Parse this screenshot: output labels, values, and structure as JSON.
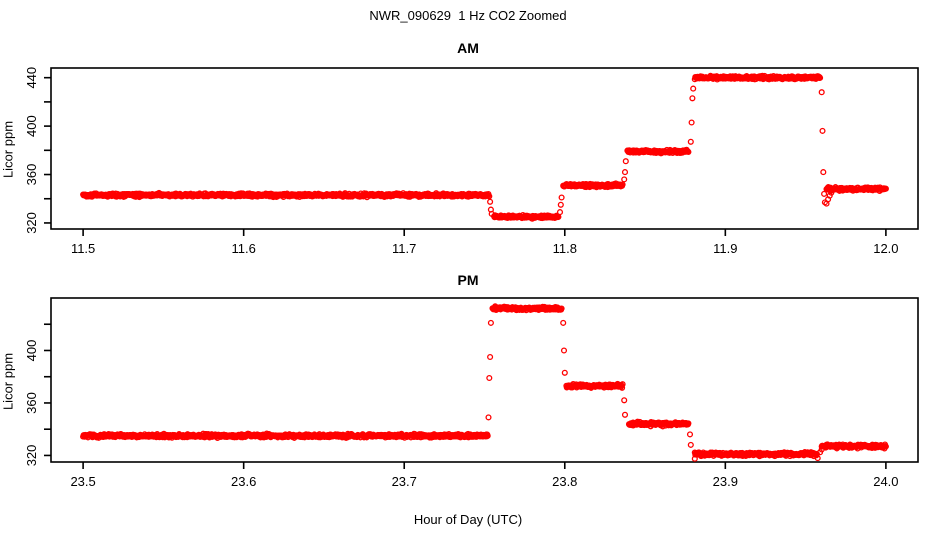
{
  "figure": {
    "title": "NWR_090629  1 Hz CO2 Zoomed",
    "xlabel": "Hour of Day (UTC)",
    "background_color": "#ffffff",
    "axis_color": "#000000",
    "point_color": "#ff0000"
  },
  "chart_data": [
    {
      "type": "scatter",
      "panel": "AM",
      "title": "AM",
      "ylabel": "Licor ppm",
      "marker": "open-circle",
      "series_color": "#ff0000",
      "grid": false,
      "xlim": [
        11.48,
        12.02
      ],
      "ylim": [
        315,
        448
      ],
      "xticks": [
        11.5,
        11.6,
        11.7,
        11.8,
        11.9,
        12.0
      ],
      "xtick_labels": [
        "11.5",
        "11.6",
        "11.7",
        "11.8",
        "11.9",
        "12.0"
      ],
      "yticks": [
        320,
        340,
        360,
        380,
        400,
        420,
        440
      ],
      "ytick_labels": [
        "320",
        "",
        "360",
        "",
        "400",
        "",
        "440"
      ],
      "segments": [
        {
          "x0": 11.5,
          "x1": 11.753,
          "y": 343,
          "noise": 0.8
        },
        {
          "x0": 11.756,
          "x1": 11.796,
          "y": 325,
          "noise": 0.8
        },
        {
          "x0": 11.799,
          "x1": 11.836,
          "y": 351,
          "noise": 0.8
        },
        {
          "x0": 11.839,
          "x1": 11.877,
          "y": 379,
          "noise": 0.8
        },
        {
          "x0": 11.881,
          "x1": 11.959,
          "y": 440,
          "noise": 0.8
        },
        {
          "x0": 11.963,
          "x1": 12.0,
          "y": 348,
          "noise": 0.8
        }
      ],
      "transition_points": [
        {
          "x": 11.7535,
          "y": 337.5
        },
        {
          "x": 11.754,
          "y": 331.0
        },
        {
          "x": 11.7545,
          "y": 327.5
        },
        {
          "x": 11.797,
          "y": 329.0
        },
        {
          "x": 11.7975,
          "y": 335.0
        },
        {
          "x": 11.798,
          "y": 341.0
        },
        {
          "x": 11.837,
          "y": 356.0
        },
        {
          "x": 11.8375,
          "y": 362.0
        },
        {
          "x": 11.838,
          "y": 371.0
        },
        {
          "x": 11.8785,
          "y": 387.0
        },
        {
          "x": 11.879,
          "y": 403.0
        },
        {
          "x": 11.8795,
          "y": 423.0
        },
        {
          "x": 11.88,
          "y": 431.0
        },
        {
          "x": 11.96,
          "y": 428.0
        },
        {
          "x": 11.9605,
          "y": 396.0
        },
        {
          "x": 11.961,
          "y": 362.0
        },
        {
          "x": 11.9615,
          "y": 344.0
        },
        {
          "x": 11.962,
          "y": 337.0
        },
        {
          "x": 11.963,
          "y": 336.0
        },
        {
          "x": 11.964,
          "y": 339.5
        },
        {
          "x": 11.965,
          "y": 342.5
        },
        {
          "x": 11.966,
          "y": 345.0
        }
      ]
    },
    {
      "type": "scatter",
      "panel": "PM",
      "title": "PM",
      "ylabel": "Licor ppm",
      "marker": "open-circle",
      "series_color": "#ff0000",
      "grid": false,
      "xlim": [
        23.48,
        24.02
      ],
      "ylim": [
        315,
        440
      ],
      "xticks": [
        23.5,
        23.6,
        23.7,
        23.8,
        23.9,
        24.0
      ],
      "xtick_labels": [
        "23.5",
        "23.6",
        "23.7",
        "23.8",
        "23.9",
        "24.0"
      ],
      "yticks": [
        320,
        340,
        360,
        380,
        400,
        420
      ],
      "ytick_labels": [
        "320",
        "",
        "360",
        "",
        "400",
        ""
      ],
      "segments": [
        {
          "x0": 23.5,
          "x1": 23.752,
          "y": 335,
          "noise": 0.8
        },
        {
          "x0": 23.755,
          "x1": 23.798,
          "y": 432,
          "noise": 0.8
        },
        {
          "x0": 23.801,
          "x1": 23.836,
          "y": 373,
          "noise": 0.8
        },
        {
          "x0": 23.84,
          "x1": 23.877,
          "y": 344,
          "noise": 0.8
        },
        {
          "x0": 23.881,
          "x1": 23.957,
          "y": 321,
          "noise": 0.8
        },
        {
          "x0": 23.96,
          "x1": 24.0,
          "y": 327,
          "noise": 0.8
        }
      ],
      "transition_points": [
        {
          "x": 23.7525,
          "y": 349.0
        },
        {
          "x": 23.753,
          "y": 379.0
        },
        {
          "x": 23.7535,
          "y": 395.0
        },
        {
          "x": 23.754,
          "y": 421.0
        },
        {
          "x": 23.799,
          "y": 421.0
        },
        {
          "x": 23.7995,
          "y": 400.0
        },
        {
          "x": 23.8,
          "y": 383.0
        },
        {
          "x": 23.837,
          "y": 362.0
        },
        {
          "x": 23.8375,
          "y": 351.0
        },
        {
          "x": 23.878,
          "y": 336.0
        },
        {
          "x": 23.8785,
          "y": 328.0
        },
        {
          "x": 23.881,
          "y": 317.5
        },
        {
          "x": 23.9575,
          "y": 318.0
        },
        {
          "x": 23.959,
          "y": 322.5
        },
        {
          "x": 23.96,
          "y": 324.5
        }
      ]
    }
  ]
}
